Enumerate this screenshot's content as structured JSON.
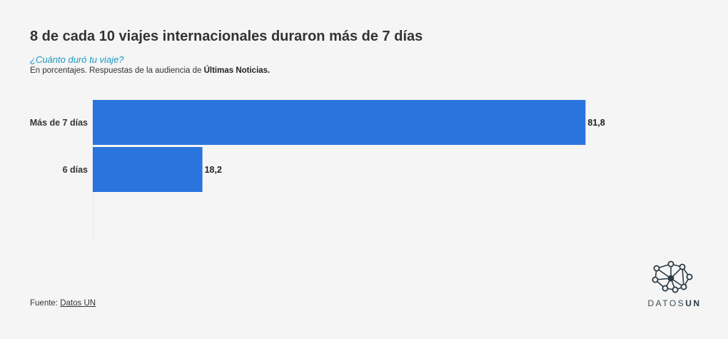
{
  "header": {
    "title": "8 de cada 10 viajes internacionales duraron más de 7 días",
    "question": "¿Cuánto duró tu viaje?",
    "note_prefix": "En porcentajes. Respuestas de la audiencia de ",
    "note_bold": "Últimas Noticias."
  },
  "footer": {
    "source_label": "Fuente: ",
    "source_link": "Datos UN"
  },
  "logo": {
    "text_light": "DATOS",
    "text_bold": "UN",
    "icon": "network-graph-icon"
  },
  "colors": {
    "bar": "#2a74dd",
    "background": "#f5f5f5",
    "accent_question": "#1a98c2"
  },
  "chart_data": {
    "type": "bar",
    "orientation": "horizontal",
    "categories": [
      "Más de 7 días",
      "6 días"
    ],
    "values": [
      81.8,
      18.2
    ],
    "value_labels": [
      "81,8",
      "18,2"
    ],
    "xlim": [
      0,
      100
    ],
    "grid": false,
    "legend": "none"
  }
}
